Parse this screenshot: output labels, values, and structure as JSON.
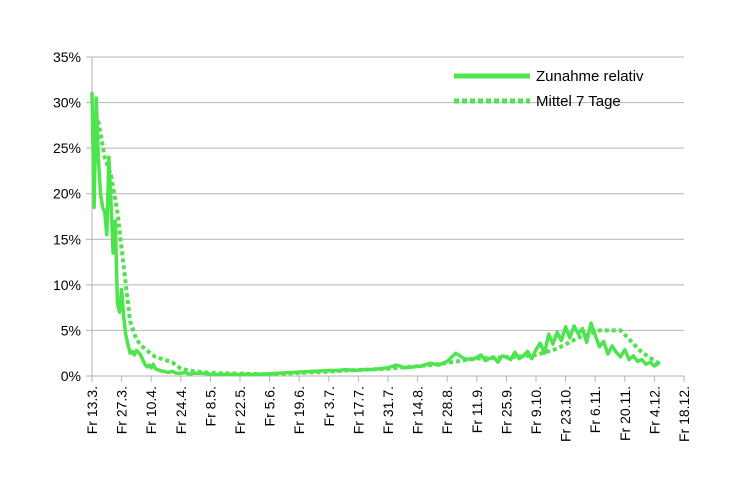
{
  "chart_data": {
    "type": "line",
    "title": "",
    "xlabel": "",
    "ylabel": "",
    "ylim": [
      0,
      35
    ],
    "y_ticks": [
      0,
      5,
      10,
      15,
      20,
      25,
      30,
      35
    ],
    "y_tick_labels": [
      "0%",
      "5%",
      "10%",
      "15%",
      "20%",
      "25%",
      "30%",
      "35%"
    ],
    "x_tick_labels": [
      "Fr 13.3.",
      "Fr 27.3.",
      "Fr 10.4.",
      "Fr 24.4.",
      "Fr 8.5.",
      "Fr 22.5.",
      "Fr 5.6.",
      "Fr 19.6.",
      "Fr 3.7.",
      "Fr 17.7.",
      "Fr 31.7.",
      "Fr 14.8.",
      "Fr 28.8.",
      "Fr 11.9.",
      "Fr 25.9.",
      "Fr 9.10.",
      "Fr 23.10.",
      "Fr 6.11.",
      "Fr 20.11.",
      "Fr 4.12.",
      "Fr 18.12."
    ],
    "grid": true,
    "legend_position": "top-right",
    "colors": {
      "line": "#4ee44e",
      "grid": "#b3b3b3",
      "axis": "#b3b3b3"
    },
    "series": [
      {
        "name": "Zunahme relativ",
        "style": "solid",
        "x": [
          0,
          1,
          2,
          3,
          4,
          5,
          6,
          7,
          8,
          9,
          10,
          11,
          12,
          13,
          14,
          15,
          16,
          17,
          18,
          19,
          20,
          21,
          22,
          23,
          24,
          25,
          26,
          27,
          28,
          29,
          30,
          32,
          34,
          36,
          38,
          40,
          42,
          44,
          46,
          48,
          52,
          56,
          60,
          64,
          68,
          72,
          76,
          80,
          84,
          88,
          92,
          96,
          100,
          104,
          108,
          112,
          116,
          120,
          124,
          128,
          132,
          136,
          140,
          144,
          148,
          152,
          156,
          160,
          164,
          168,
          172,
          176,
          180,
          184,
          186,
          188,
          190,
          192,
          194,
          196,
          198,
          200,
          202,
          204,
          206,
          208,
          210,
          212,
          214,
          216,
          218,
          220,
          222,
          224,
          226,
          228,
          230,
          232,
          234,
          236,
          238,
          240,
          242,
          244,
          246,
          248,
          250,
          252,
          254,
          256,
          258,
          260,
          262,
          264,
          266,
          268
        ],
        "y": [
          31,
          18.5,
          30.5,
          24,
          20,
          18.5,
          18,
          15.5,
          24,
          19,
          13.5,
          17,
          8,
          7,
          9.5,
          6.5,
          4.5,
          3.5,
          2.5,
          2.7,
          2.3,
          2.8,
          2.6,
          2.3,
          1.8,
          1.3,
          1.0,
          1.2,
          0.9,
          1.3,
          0.8,
          0.6,
          0.5,
          0.4,
          0.5,
          0.3,
          0.3,
          0.4,
          0.2,
          0.3,
          0.3,
          0.2,
          0.15,
          0.2,
          0.15,
          0.2,
          0.15,
          0.2,
          0.25,
          0.3,
          0.35,
          0.4,
          0.45,
          0.5,
          0.55,
          0.6,
          0.6,
          0.7,
          0.6,
          0.7,
          0.7,
          0.8,
          0.9,
          1.2,
          0.9,
          1.0,
          1.1,
          1.4,
          1.2,
          1.6,
          2.5,
          1.9,
          1.8,
          2.3,
          1.7,
          1.9,
          2.1,
          1.5,
          2.2,
          2.1,
          1.8,
          2.6,
          1.9,
          2.2,
          2.7,
          1.9,
          2.9,
          3.6,
          2.5,
          4.6,
          3.5,
          4.8,
          3.9,
          5.4,
          4.2,
          5.5,
          4.6,
          5.2,
          3.7,
          5.8,
          4.5,
          3.2,
          3.8,
          2.4,
          3.3,
          2.6,
          2.1,
          2.9,
          1.8,
          2.2,
          1.6,
          1.8,
          1.3,
          1.5,
          1.1,
          1.4
        ]
      },
      {
        "name": "Mittel 7 Tage",
        "style": "dotted",
        "x": [
          3,
          6,
          9,
          12,
          15,
          18,
          21,
          24,
          27,
          30,
          34,
          38,
          42,
          46,
          50,
          60,
          70,
          80,
          90,
          100,
          110,
          120,
          130,
          140,
          150,
          160,
          170,
          180,
          190,
          200,
          210,
          220,
          230,
          240,
          250,
          260,
          268
        ],
        "y": [
          28,
          24,
          22,
          18,
          12,
          6,
          4,
          3.2,
          2.6,
          2.1,
          1.8,
          1.5,
          0.8,
          0.6,
          0.45,
          0.3,
          0.25,
          0.2,
          0.25,
          0.35,
          0.45,
          0.6,
          0.7,
          0.8,
          1.0,
          1.2,
          1.5,
          1.9,
          2.0,
          2.1,
          2.3,
          3.0,
          4.2,
          5.0,
          5.0,
          2.6,
          1.4
        ]
      }
    ]
  }
}
